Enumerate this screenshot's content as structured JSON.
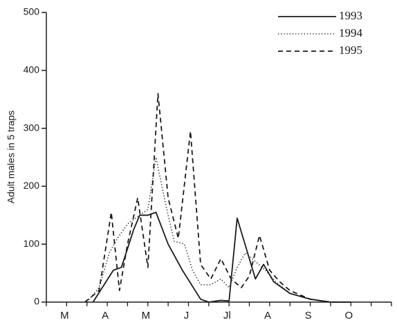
{
  "chart_data": {
    "type": "line",
    "xlabel": "",
    "ylabel": "Adult males in 5 traps",
    "ylim": [
      0,
      500
    ],
    "yticks": [
      "0",
      "100",
      "200",
      "300",
      "400",
      "500"
    ],
    "xticks": [
      "M",
      "A",
      "M",
      "J",
      "Jl",
      "A",
      "S",
      "O"
    ],
    "x_period_count": 17,
    "grid": false,
    "legend_position": "top-right",
    "series": [
      {
        "name": "1993",
        "dash": "solid",
        "points": [
          [
            2.3,
            0
          ],
          [
            3.3,
            55
          ],
          [
            3.7,
            60
          ],
          [
            4.3,
            125
          ],
          [
            4.6,
            150
          ],
          [
            5.0,
            150
          ],
          [
            5.4,
            155
          ],
          [
            6.0,
            100
          ],
          [
            6.7,
            55
          ],
          [
            7.6,
            5
          ],
          [
            8.0,
            0
          ],
          [
            8.6,
            3
          ],
          [
            9.0,
            2
          ],
          [
            9.4,
            145
          ],
          [
            10.3,
            40
          ],
          [
            10.7,
            65
          ],
          [
            11.2,
            35
          ],
          [
            12.0,
            15
          ],
          [
            13.0,
            5
          ],
          [
            14.0,
            0
          ],
          [
            15.0,
            0
          ]
        ]
      },
      {
        "name": "1994",
        "dash": "dotted",
        "points": [
          [
            2.0,
            0
          ],
          [
            2.6,
            25
          ],
          [
            3.1,
            85
          ],
          [
            3.5,
            110
          ],
          [
            4.0,
            135
          ],
          [
            4.6,
            150
          ],
          [
            5.0,
            160
          ],
          [
            5.4,
            250
          ],
          [
            5.9,
            165
          ],
          [
            6.3,
            105
          ],
          [
            6.8,
            100
          ],
          [
            7.2,
            55
          ],
          [
            7.6,
            30
          ],
          [
            8.1,
            30
          ],
          [
            8.6,
            40
          ],
          [
            9.0,
            25
          ],
          [
            9.4,
            60
          ],
          [
            9.8,
            85
          ],
          [
            10.3,
            70
          ],
          [
            10.8,
            55
          ],
          [
            11.3,
            35
          ],
          [
            12.0,
            15
          ],
          [
            13.0,
            5
          ],
          [
            14.0,
            0
          ],
          [
            15.0,
            0
          ]
        ]
      },
      {
        "name": "1995",
        "dash": "dashed",
        "points": [
          [
            1.9,
            0
          ],
          [
            2.6,
            20
          ],
          [
            3.2,
            155
          ],
          [
            3.6,
            20
          ],
          [
            4.0,
            100
          ],
          [
            4.5,
            180
          ],
          [
            5.0,
            60
          ],
          [
            5.5,
            360
          ],
          [
            6.0,
            180
          ],
          [
            6.5,
            110
          ],
          [
            7.1,
            295
          ],
          [
            7.6,
            65
          ],
          [
            8.1,
            40
          ],
          [
            8.6,
            75
          ],
          [
            9.1,
            40
          ],
          [
            9.6,
            25
          ],
          [
            10.0,
            45
          ],
          [
            10.5,
            115
          ],
          [
            11.0,
            55
          ],
          [
            11.5,
            35
          ],
          [
            12.0,
            20
          ],
          [
            13.0,
            5
          ],
          [
            14.0,
            0
          ],
          [
            15.0,
            0
          ]
        ]
      }
    ]
  }
}
